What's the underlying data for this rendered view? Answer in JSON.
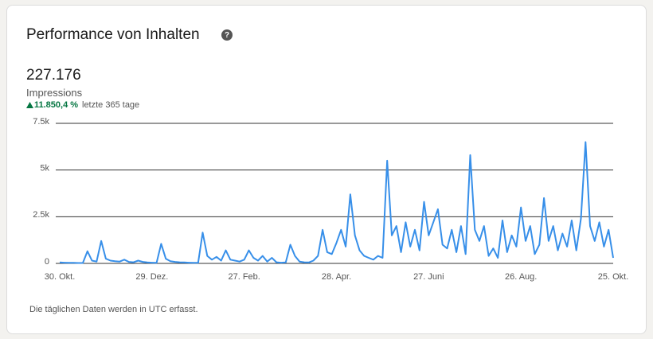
{
  "header": {
    "title": "Performance von Inhalten"
  },
  "summary": {
    "value": "227.176",
    "label": "Impressions",
    "change": "11.850,4 %",
    "period": "letzte 365 tage"
  },
  "chart_data": {
    "type": "line",
    "color": "#378fe9",
    "grid": true,
    "x": [
      0,
      3,
      6,
      9,
      12,
      15,
      18,
      21,
      24,
      27,
      30,
      33,
      36,
      39,
      42,
      45,
      48,
      51,
      54,
      57,
      60,
      63,
      66,
      69,
      72,
      75,
      78,
      81,
      84,
      87,
      90,
      93,
      96,
      99,
      102,
      105,
      108,
      111,
      114,
      117,
      120,
      123,
      126,
      129,
      132,
      135,
      138,
      141,
      144,
      147,
      150,
      153,
      156,
      159,
      162,
      165,
      168,
      171,
      174,
      177,
      180,
      183,
      186,
      189,
      192,
      195,
      198,
      201,
      204,
      207,
      210,
      213,
      216,
      219,
      222,
      225,
      228,
      231,
      234,
      237,
      240,
      243,
      246,
      249,
      252,
      255,
      258,
      261,
      264,
      267,
      270,
      273,
      276,
      279,
      282,
      285,
      288,
      291,
      294,
      297,
      300,
      303,
      306,
      309,
      312,
      315,
      318,
      321,
      324,
      327,
      330,
      333,
      336,
      339,
      342,
      345,
      348,
      351,
      354,
      357,
      360
    ],
    "values": [
      50,
      40,
      30,
      30,
      20,
      20,
      650,
      150,
      100,
      1200,
      250,
      150,
      120,
      100,
      200,
      80,
      60,
      150,
      80,
      50,
      40,
      30,
      1050,
      250,
      120,
      80,
      60,
      50,
      40,
      30,
      30,
      1650,
      400,
      200,
      350,
      150,
      700,
      200,
      150,
      100,
      200,
      700,
      300,
      150,
      400,
      100,
      300,
      60,
      40,
      50,
      1000,
      400,
      100,
      60,
      50,
      150,
      400,
      1800,
      600,
      500,
      1100,
      1800,
      900,
      3700,
      1500,
      700,
      400,
      300,
      200,
      400,
      300,
      5500,
      1500,
      2000,
      600,
      2200,
      900,
      1800,
      700,
      3300,
      1500,
      2200,
      2900,
      1000,
      800,
      1800,
      600,
      2000,
      500,
      5800,
      1800,
      1200,
      2000,
      400,
      800,
      300,
      2300,
      600,
      1500,
      900,
      3000,
      1200,
      2000,
      500,
      1000,
      3500,
      1200,
      2000,
      700,
      1600,
      900,
      2300,
      700,
      2400,
      6500,
      2000,
      1200,
      2200,
      900,
      1800,
      300
    ],
    "xlim": [
      0,
      360
    ],
    "xticks": [
      {
        "value": 0,
        "label": "30. Okt."
      },
      {
        "value": 60,
        "label": "29. Dez."
      },
      {
        "value": 120,
        "label": "27. Feb."
      },
      {
        "value": 180,
        "label": "28. Apr."
      },
      {
        "value": 240,
        "label": "27. Juni"
      },
      {
        "value": 300,
        "label": "26. Aug."
      },
      {
        "value": 360,
        "label": "25. Okt."
      }
    ],
    "ylim": [
      0,
      7500
    ],
    "yticks": [
      0,
      {
        "value": 2500,
        "label": "2.5k"
      },
      {
        "value": 5000,
        "label": "5k"
      },
      {
        "value": 7500,
        "label": "7.5k"
      }
    ]
  },
  "footnote": "Die täglichen Daten werden in UTC erfasst."
}
